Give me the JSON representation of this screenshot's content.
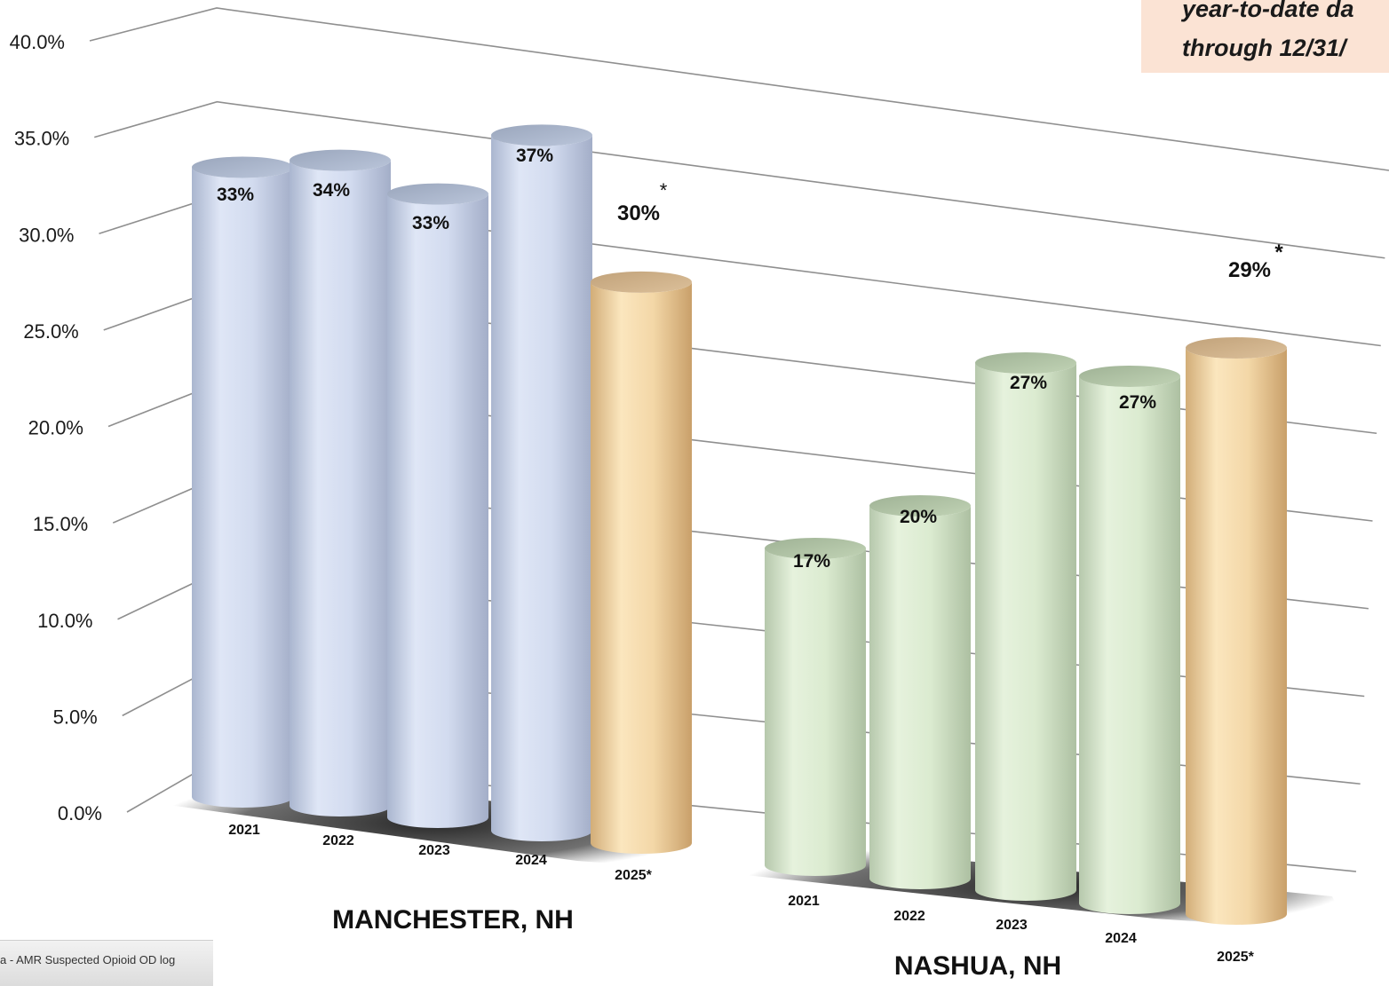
{
  "note": {
    "line1": "year-to-date da",
    "line2": "through 12/31/"
  },
  "source": "a - AMR Suspected Opioid OD log",
  "chart_data": {
    "type": "bar",
    "ylim": [
      0,
      40
    ],
    "y_ticks": [
      "0.0%",
      "5.0%",
      "10.0%",
      "15.0%",
      "20.0%",
      "25.0%",
      "30.0%",
      "35.0%",
      "40.0%"
    ],
    "grid": true,
    "colors": {
      "past_years_manchester": "#c9d4ec",
      "past_years_nashua": "#d3e6c8",
      "current_year": "#f0d3a0"
    },
    "groups": [
      {
        "name": "MANCHESTER, NH",
        "categories": [
          "2021",
          "2022",
          "2023",
          "2024",
          "2025*"
        ],
        "values": [
          33,
          34,
          33,
          37,
          30
        ],
        "labels": [
          "33%",
          "34%",
          "33%",
          "37%",
          "30%"
        ]
      },
      {
        "name": "NASHUA, NH",
        "categories": [
          "2021",
          "2022",
          "2023",
          "2024",
          "2025*"
        ],
        "values": [
          17,
          20,
          27,
          27,
          29
        ],
        "labels": [
          "17%",
          "20%",
          "27%",
          "27%",
          "29%"
        ]
      }
    ],
    "annotation_marker": "*"
  }
}
